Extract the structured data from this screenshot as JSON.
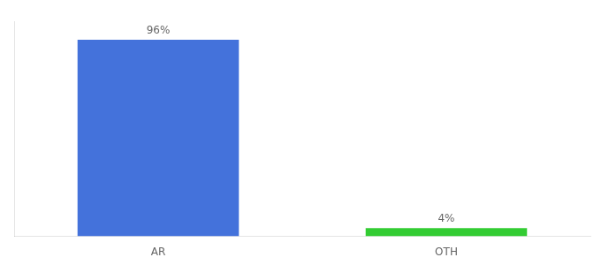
{
  "chart_data": {
    "type": "bar",
    "categories": [
      "AR",
      "OTH"
    ],
    "values": [
      96,
      4
    ],
    "value_labels": [
      "96%",
      "4%"
    ],
    "colors": [
      "#4472db",
      "#33cc33"
    ],
    "ylim": [
      0,
      105
    ],
    "yticks": [],
    "grid": false,
    "data_labels": true,
    "tick_labels": "x"
  }
}
